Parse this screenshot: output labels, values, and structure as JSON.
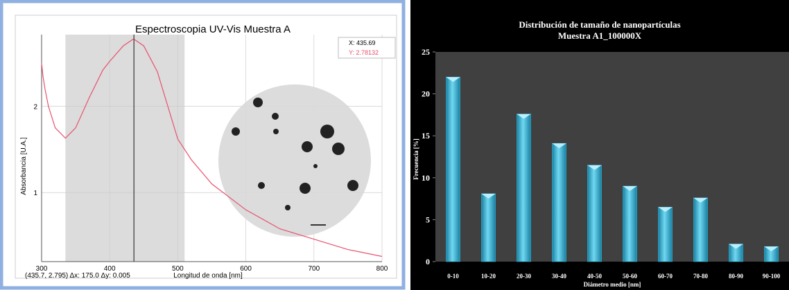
{
  "chart_data": [
    {
      "type": "line",
      "title": "Espectroscopia UV-Vis Muestra A",
      "x_label": "Longitud de onda [nm]",
      "y_label": "Absorbancia [U.A.]",
      "x": [
        300,
        302,
        305,
        310,
        320,
        335,
        350,
        370,
        390,
        400,
        420,
        435,
        450,
        470,
        500,
        520,
        550,
        580,
        600,
        650,
        700,
        750,
        800
      ],
      "values": [
        2.5,
        2.35,
        2.2,
        2.0,
        1.75,
        1.63,
        1.75,
        2.1,
        2.42,
        2.52,
        2.7,
        2.78,
        2.7,
        2.4,
        1.62,
        1.38,
        1.1,
        0.92,
        0.8,
        0.58,
        0.46,
        0.34,
        0.26
      ],
      "color": "#e8506e",
      "xlim": [
        300,
        800
      ],
      "ylim": [
        0.2,
        2.83
      ],
      "xticks": [
        300,
        400,
        500,
        600,
        700,
        800
      ],
      "yticks": [
        1,
        2
      ],
      "grid": true,
      "highlight": [
        335,
        510
      ],
      "cursor_x": 435.69,
      "tooltip": [
        "X: 435.69",
        "Y: 2.78132"
      ],
      "status": "(435.7, 2.795) Δx: 175.0 Δy: 0.005"
    },
    {
      "type": "bar",
      "title": [
        "Distribución de tamaño de nanopartículas",
        "Muestra A1_100000X"
      ],
      "x_label": "Diámetro medio [nm]",
      "y_label": "Frecuencia [%]",
      "categories": [
        "0-10",
        "10-20",
        "20-30",
        "30-40",
        "40-50",
        "50-60",
        "60-70",
        "70-80",
        "80-90",
        "90-100"
      ],
      "values": [
        22,
        8.1,
        17.6,
        14.1,
        11.5,
        9,
        6.5,
        7.6,
        2.1,
        1.8
      ],
      "color": "#2fb5d8",
      "ylim": [
        0,
        25
      ],
      "yticks": [
        0,
        5,
        10,
        15,
        20,
        25
      ]
    }
  ]
}
